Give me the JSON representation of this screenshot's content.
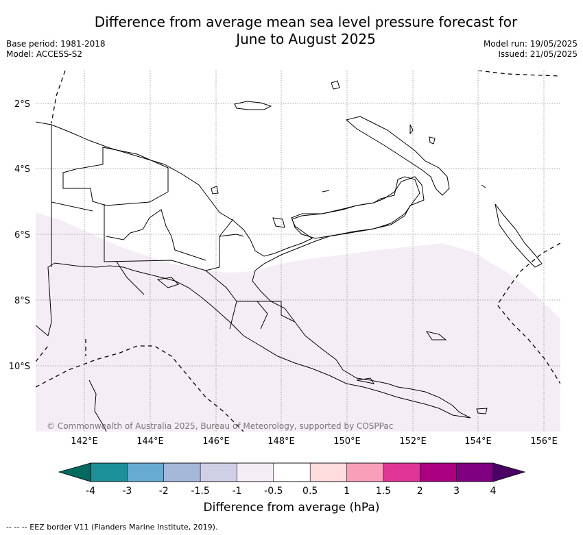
{
  "title_line1": "Difference from average mean sea level pressure forecast for",
  "title_line2": "June to August 2025",
  "meta": {
    "base_period": "Base period: 1981-2018",
    "model": "Model: ACCESS-S2",
    "model_run": "Model run: 19/05/2025",
    "issued": "Issued: 21/05/2025"
  },
  "map": {
    "lat_labels": [
      "2°S",
      "4°S",
      "6°S",
      "8°S",
      "10°S"
    ],
    "lon_labels": [
      "142°E",
      "144°E",
      "146°E",
      "148°E",
      "150°E",
      "152°E",
      "154°E",
      "156°E"
    ],
    "copyright": "© Commonwealth of Australia 2025, Bureau of Meteorology, supported by COSPPac",
    "anomaly_fill_color": "#f4edf5"
  },
  "colorbar": {
    "label": "Difference from average (hPa)",
    "ticks": [
      "-4",
      "-3",
      "-2",
      "-1.5",
      "-1",
      "-0.5",
      "0.5",
      "1",
      "1.5",
      "2",
      "3",
      "4"
    ],
    "low_extend_color": "#026a5e",
    "high_extend_color": "#4a0064",
    "colors": [
      "#1b9099",
      "#67abd2",
      "#a4b8da",
      "#cfcfe6",
      "#f4edf5",
      "#ffffff",
      "#ffdcde",
      "#f8a0ba",
      "#e03596",
      "#ac0083",
      "#800082"
    ]
  },
  "footnote": "-- -- -- EEZ border V11 (Flanders Marine Institute, 2019)."
}
